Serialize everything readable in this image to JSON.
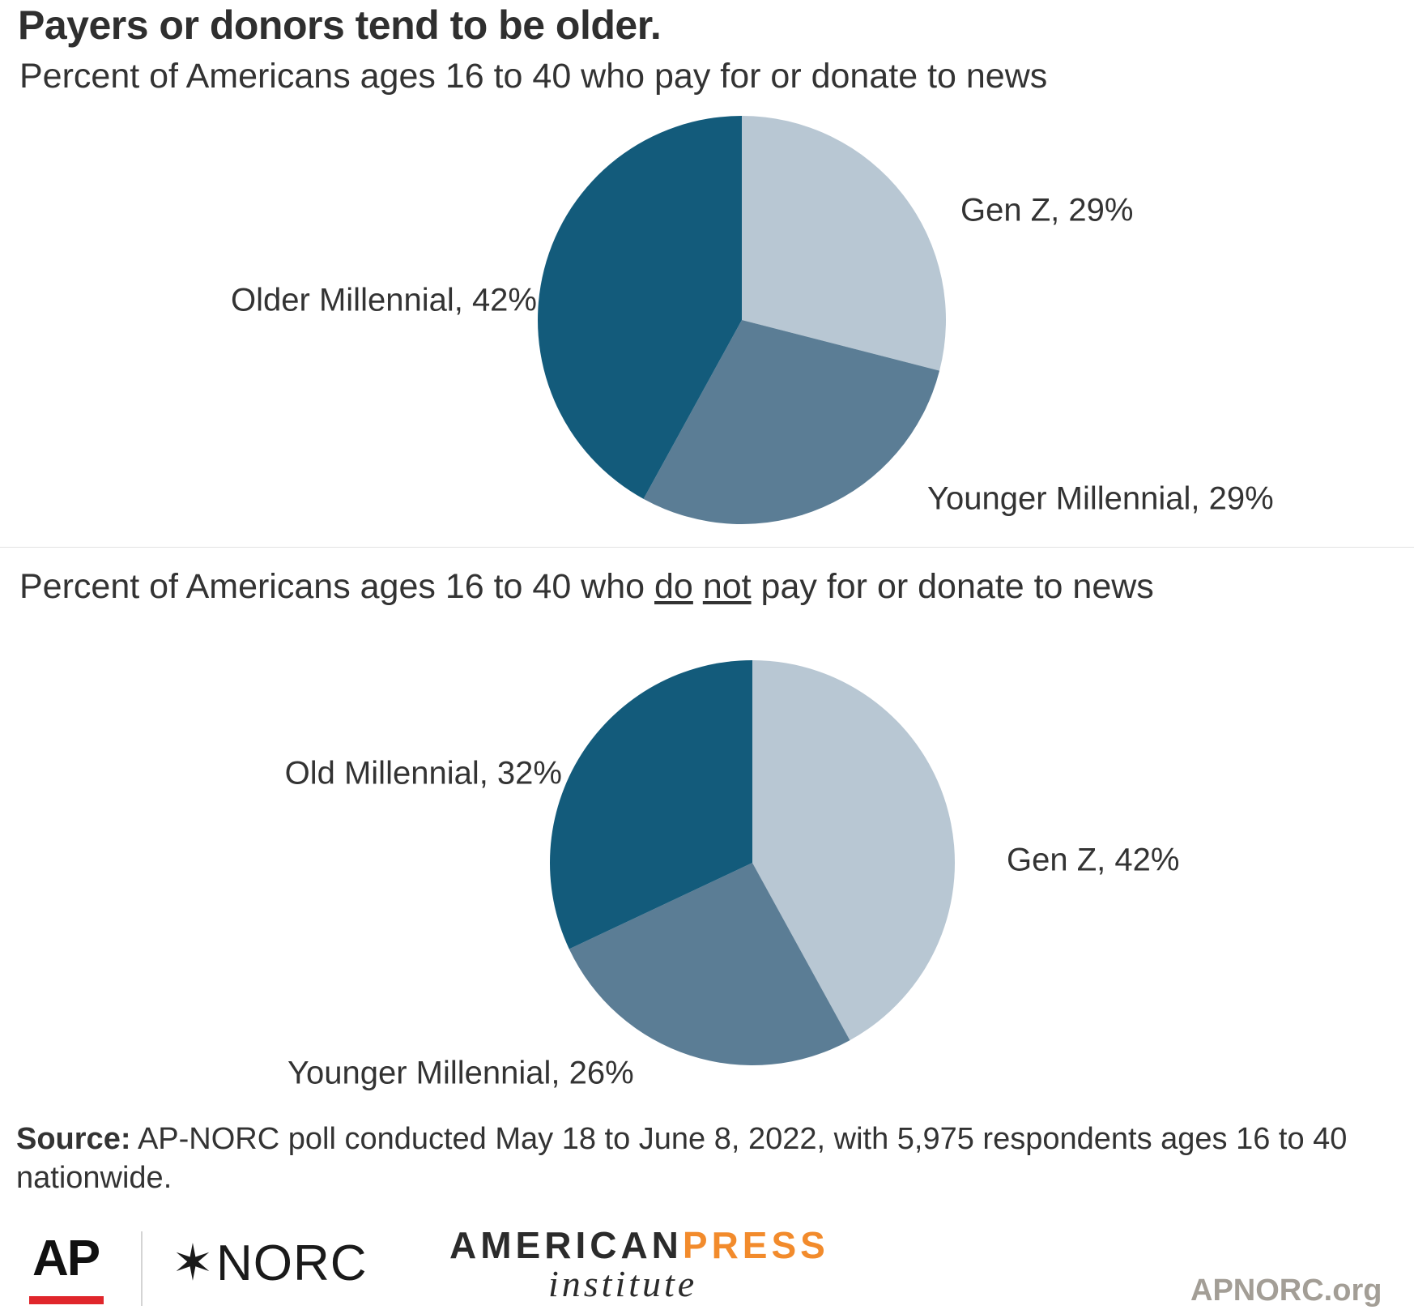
{
  "title": "Payers or donors tend to be older.",
  "colors": {
    "light": "#b8c7d3",
    "medium": "#5b7d95",
    "dark": "#135b7b"
  },
  "chart_data": [
    {
      "type": "pie",
      "title": "Percent of Americans ages 16 to 40 who pay for or donate to news",
      "slices": [
        {
          "label": "Gen Z, 29%",
          "value": 29,
          "color": "#b8c7d3"
        },
        {
          "label": "Younger Millennial, 29%",
          "value": 29,
          "color": "#5b7d95"
        },
        {
          "label": "Older Millennial, 42%",
          "value": 42,
          "color": "#135b7b"
        }
      ]
    },
    {
      "type": "pie",
      "title_parts": [
        "Percent of Americans ages 16 to 40 who ",
        "do",
        " ",
        "not",
        " pay for or donate to news"
      ],
      "slices": [
        {
          "label": "Gen Z, 42%",
          "value": 42,
          "color": "#b8c7d3"
        },
        {
          "label": "Younger Millennial, 26%",
          "value": 26,
          "color": "#5b7d95"
        },
        {
          "label": "Old Millennial, 32%",
          "value": 32,
          "color": "#135b7b"
        }
      ]
    }
  ],
  "source": {
    "label": "Source:",
    "text": " AP-NORC poll conducted May 18 to June 8, 2022, with 5,975 respondents ages 16 to 40 nationwide."
  },
  "footer": {
    "ap": "AP",
    "norc_star": "✶",
    "norc": "NORC",
    "api_american": "AMERICAN",
    "api_press": "PRESS",
    "api_institute": "institute",
    "site": "APNORC.org"
  }
}
